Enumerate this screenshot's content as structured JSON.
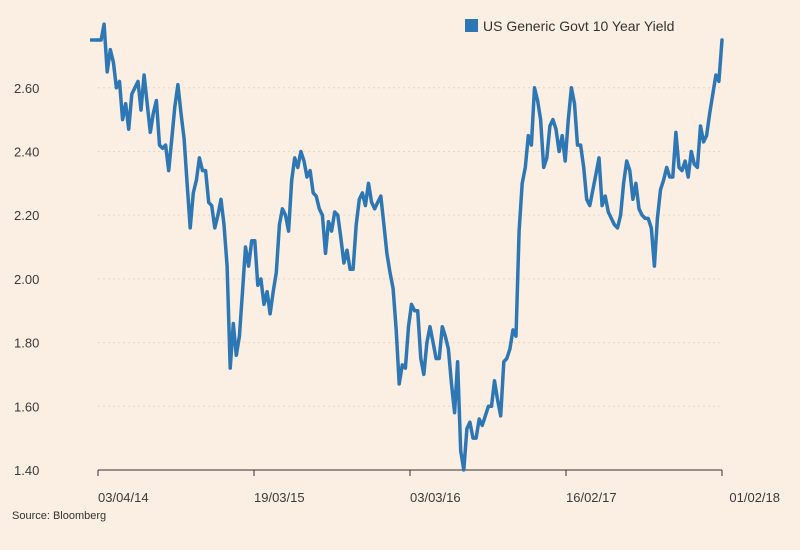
{
  "chart_data": {
    "type": "line",
    "title": "",
    "xlabel": "",
    "ylabel": "",
    "ylim": [
      1.4,
      2.75
    ],
    "yticks": [
      1.4,
      1.6,
      1.8,
      2.0,
      2.2,
      2.4,
      2.6
    ],
    "ytick_labels": [
      "1.40",
      "1.60",
      "1.80",
      "2.00",
      "2.20",
      "2.40",
      "2.60"
    ],
    "xtick_labels": [
      "03/04/14",
      "19/03/15",
      "03/03/16",
      "16/02/17",
      "01/02/18"
    ],
    "grid": "horizontal-dotted",
    "legend_position": "top-right",
    "colors": {
      "series": "#2e77b5",
      "grid": "#e6d6c8",
      "axis": "#333333",
      "background": "#fbeee2"
    },
    "series": [
      {
        "name": "US Generic Govt 10 Year Yield",
        "values": [
          2.75,
          2.75,
          2.8,
          2.65,
          2.72,
          2.68,
          2.6,
          2.62,
          2.5,
          2.55,
          2.47,
          2.58,
          2.6,
          2.62,
          2.53,
          2.64,
          2.55,
          2.46,
          2.52,
          2.56,
          2.42,
          2.41,
          2.42,
          2.34,
          2.44,
          2.54,
          2.61,
          2.52,
          2.44,
          2.3,
          2.16,
          2.27,
          2.31,
          2.38,
          2.34,
          2.34,
          2.24,
          2.23,
          2.16,
          2.2,
          2.25,
          2.17,
          2.04,
          1.72,
          1.86,
          1.76,
          1.82,
          1.96,
          2.1,
          2.04,
          2.12,
          2.12,
          1.98,
          2.0,
          1.92,
          1.96,
          1.89,
          1.96,
          2.02,
          2.17,
          2.22,
          2.2,
          2.15,
          2.31,
          2.38,
          2.35,
          2.4,
          2.37,
          2.32,
          2.34,
          2.27,
          2.26,
          2.22,
          2.2,
          2.08,
          2.18,
          2.15,
          2.21,
          2.2,
          2.13,
          2.05,
          2.09,
          2.03,
          2.03,
          2.17,
          2.25,
          2.27,
          2.23,
          2.3,
          2.24,
          2.22,
          2.24,
          2.26,
          2.17,
          2.08,
          2.02,
          1.97,
          1.84,
          1.67,
          1.73,
          1.72,
          1.85,
          1.92,
          1.9,
          1.9,
          1.75,
          1.7,
          1.8,
          1.85,
          1.8,
          1.75,
          1.75,
          1.85,
          1.82,
          1.78,
          1.67,
          1.58,
          1.74,
          1.46,
          1.4,
          1.53,
          1.55,
          1.5,
          1.5,
          1.56,
          1.54,
          1.57,
          1.6,
          1.6,
          1.68,
          1.62,
          1.57,
          1.74,
          1.75,
          1.78,
          1.84,
          1.82,
          2.15,
          2.3,
          2.35,
          2.45,
          2.42,
          2.6,
          2.56,
          2.5,
          2.35,
          2.38,
          2.48,
          2.5,
          2.47,
          2.4,
          2.45,
          2.37,
          2.5,
          2.6,
          2.55,
          2.42,
          2.42,
          2.35,
          2.25,
          2.23,
          2.28,
          2.33,
          2.38,
          2.23,
          2.26,
          2.21,
          2.19,
          2.17,
          2.16,
          2.2,
          2.3,
          2.37,
          2.34,
          2.25,
          2.3,
          2.22,
          2.2,
          2.19,
          2.19,
          2.16,
          2.04,
          2.19,
          2.28,
          2.31,
          2.35,
          2.32,
          2.32,
          2.46,
          2.35,
          2.34,
          2.37,
          2.32,
          2.4,
          2.36,
          2.35,
          2.48,
          2.43,
          2.45,
          2.52,
          2.58,
          2.64,
          2.62,
          2.75
        ]
      }
    ]
  },
  "source": "Source: Bloomberg"
}
